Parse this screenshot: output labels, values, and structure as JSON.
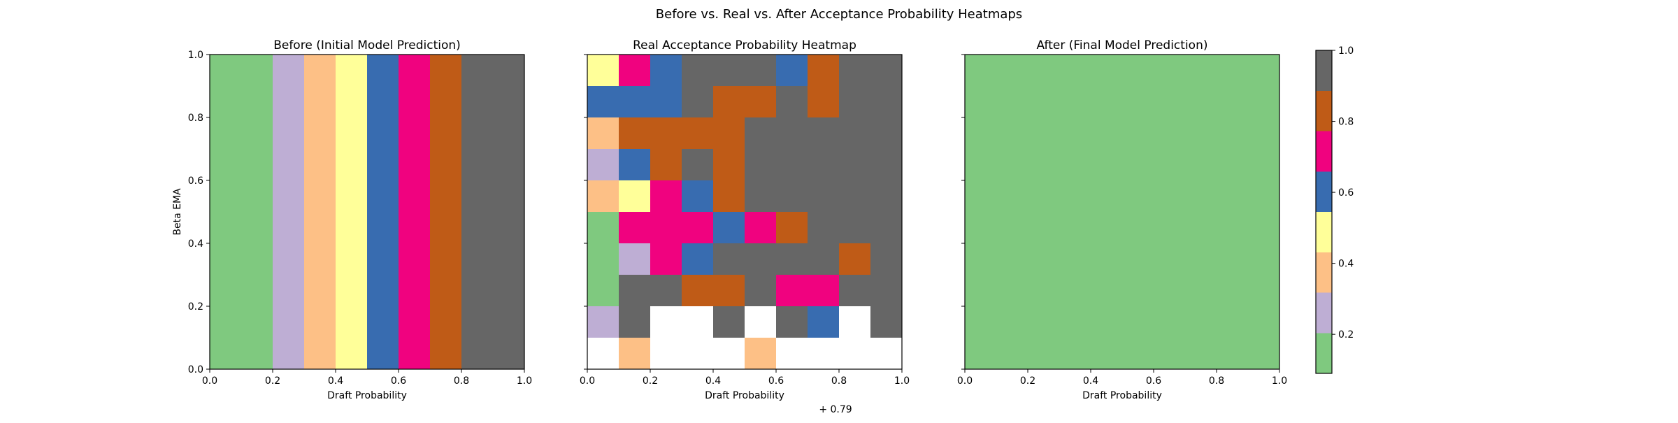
{
  "chart_data": {
    "type": "heatmap",
    "suptitle": "Before vs. Real vs. After Acceptance Probability Heatmaps",
    "palette": [
      "#7fc97f",
      "#beaed4",
      "#fdc086",
      "#ffff99",
      "#386cb0",
      "#f0027f",
      "#bf5b17",
      "#666666"
    ],
    "missing_color": "#ffffff",
    "colorbar": {
      "range": [
        0.09,
        1.0
      ],
      "ticks": [
        "0.2",
        "0.4",
        "0.6",
        "0.8",
        "1.0"
      ],
      "tick_values": [
        0.2,
        0.4,
        0.6,
        0.8,
        1.0
      ]
    },
    "panels": [
      {
        "title": "Before (Initial Model Prediction)",
        "xlabel": "Draft Probability",
        "ylabel": "Beta EMA",
        "xlim": [
          0.0,
          1.0
        ],
        "ylim": [
          0.0,
          1.0
        ],
        "xticks": [
          "0.0",
          "0.2",
          "0.4",
          "0.6",
          "0.8",
          "1.0"
        ],
        "yticks": [
          "0.0",
          "0.2",
          "0.4",
          "0.6",
          "0.8",
          "1.0"
        ],
        "x_offset_label": "",
        "bands": [
          {
            "x0": 0.0,
            "x1": 0.2,
            "level": 0
          },
          {
            "x0": 0.2,
            "x1": 0.3,
            "level": 1
          },
          {
            "x0": 0.3,
            "x1": 0.4,
            "level": 2
          },
          {
            "x0": 0.4,
            "x1": 0.5,
            "level": 3
          },
          {
            "x0": 0.5,
            "x1": 0.6,
            "level": 4
          },
          {
            "x0": 0.6,
            "x1": 0.7,
            "level": 5
          },
          {
            "x0": 0.7,
            "x1": 0.8,
            "level": 6
          },
          {
            "x0": 0.8,
            "x1": 1.0,
            "level": 7
          }
        ]
      },
      {
        "title": "Real Acceptance Probability Heatmap",
        "xlabel": "Draft Probability",
        "ylabel": "",
        "xlim": [
          0.0,
          1.0
        ],
        "ylim": [
          0.0,
          1.0
        ],
        "xticks": [
          "0.0",
          "0.2",
          "0.4",
          "0.6",
          "0.8",
          "1.0"
        ],
        "yticks": [],
        "x_offset_label": "+ 0.79",
        "grid_levels": [
          [
            3,
            5,
            4,
            7,
            7,
            7,
            4,
            6,
            7,
            7
          ],
          [
            4,
            4,
            4,
            7,
            6,
            6,
            7,
            6,
            7,
            7
          ],
          [
            2,
            6,
            6,
            6,
            6,
            7,
            7,
            7,
            7,
            7
          ],
          [
            1,
            4,
            6,
            7,
            6,
            7,
            7,
            7,
            7,
            7
          ],
          [
            2,
            3,
            5,
            4,
            6,
            7,
            7,
            7,
            7,
            7
          ],
          [
            0,
            5,
            5,
            5,
            4,
            5,
            6,
            7,
            7,
            7
          ],
          [
            0,
            1,
            5,
            4,
            7,
            7,
            7,
            7,
            6,
            7
          ],
          [
            0,
            7,
            7,
            6,
            6,
            7,
            5,
            5,
            7,
            7
          ],
          [
            1,
            7,
            null,
            null,
            7,
            null,
            7,
            4,
            null,
            7
          ],
          [
            null,
            2,
            null,
            null,
            null,
            2,
            null,
            null,
            null,
            null
          ]
        ]
      },
      {
        "title": "After (Final Model Prediction)",
        "xlabel": "Draft Probability",
        "ylabel": "",
        "xlim": [
          0.0,
          1.0
        ],
        "ylim": [
          0.0,
          1.0
        ],
        "xticks": [
          "0.0",
          "0.2",
          "0.4",
          "0.6",
          "0.8",
          "1.0"
        ],
        "yticks": [],
        "x_offset_label": "",
        "uniform_level": 0
      }
    ]
  }
}
